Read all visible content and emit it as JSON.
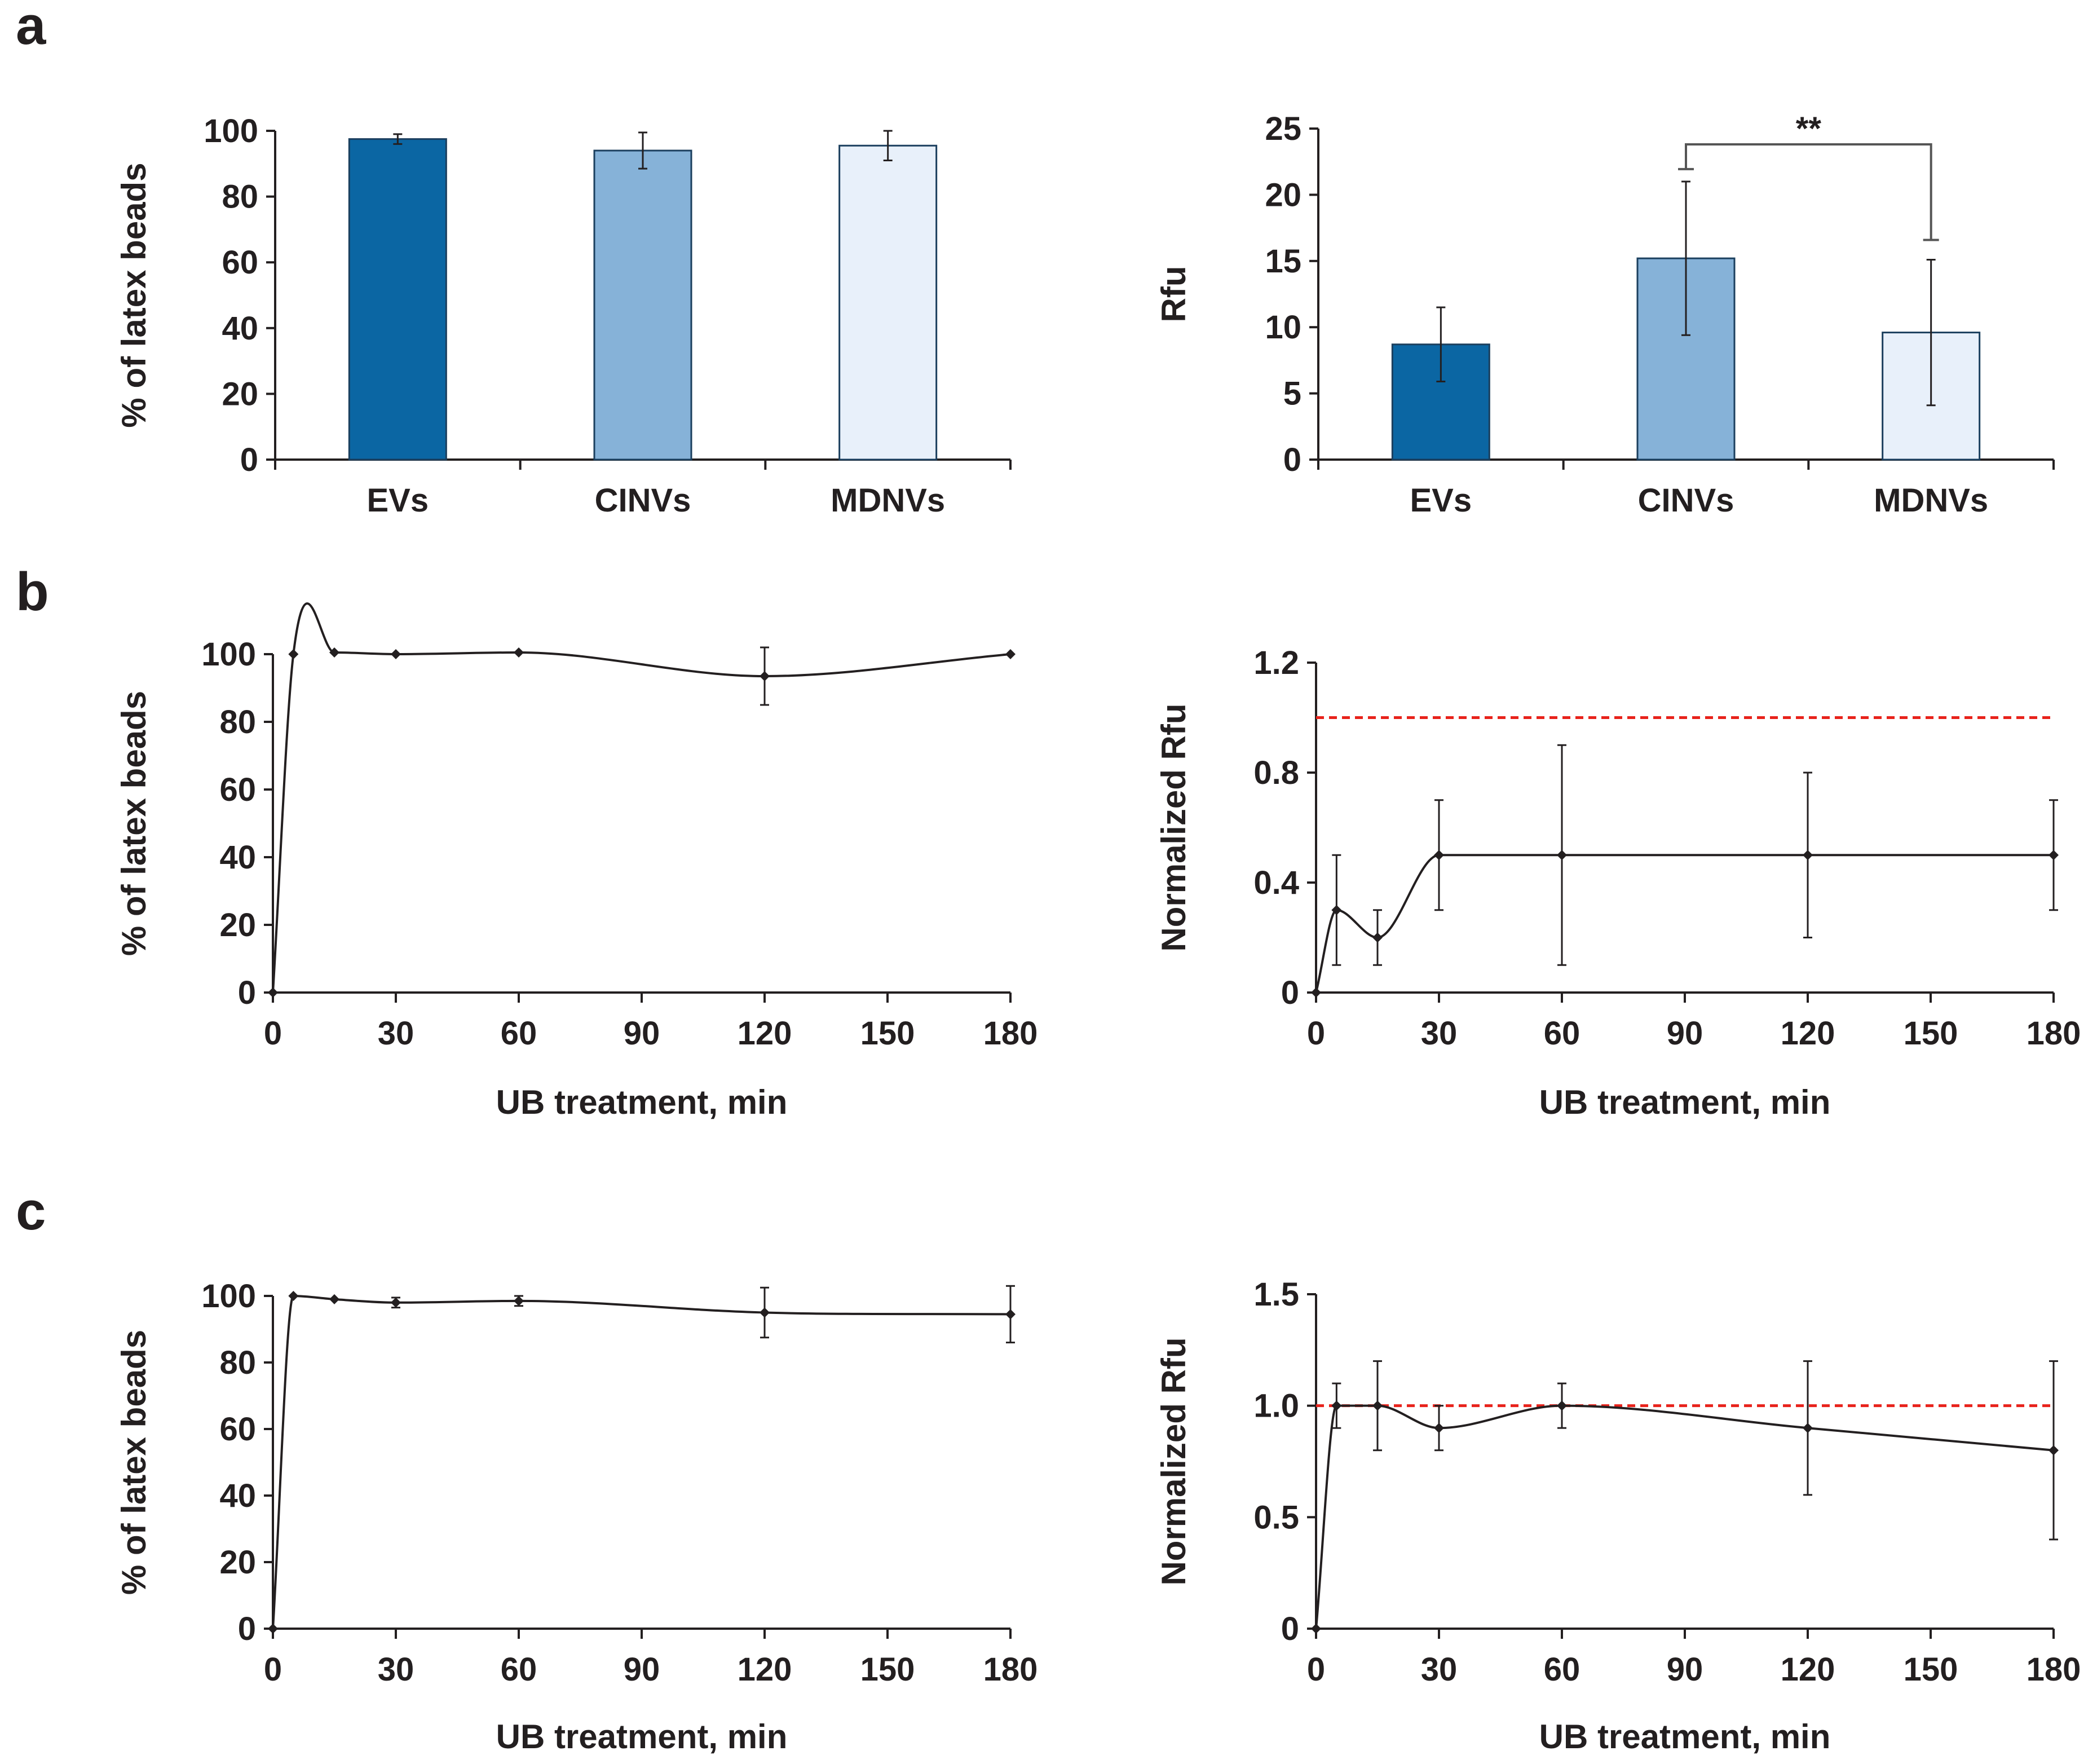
{
  "panels": {
    "a": "a",
    "b": "b",
    "c": "c"
  },
  "colors": {
    "EVs": "#0b66a3",
    "CINVs": "#86b2d8",
    "MDNVs": "#e8f0fa",
    "line": "#231f20",
    "reference": "#e8221b"
  },
  "chart_data": [
    {
      "id": "a-left",
      "type": "bar",
      "categories": [
        "EVs",
        "CINVs",
        "MDNVs"
      ],
      "values": [
        97.5,
        94,
        95.5
      ],
      "errors": [
        1.5,
        5.5,
        4.5
      ],
      "ylabel": "% of latex beads",
      "xlabel": "",
      "ylim": [
        0,
        100
      ],
      "yticks": [
        "0",
        "20",
        "40",
        "60",
        "80",
        "100"
      ]
    },
    {
      "id": "a-right",
      "type": "bar",
      "categories": [
        "EVs",
        "CINVs",
        "MDNVs"
      ],
      "values": [
        8.7,
        15.2,
        9.6
      ],
      "errors": [
        2.8,
        5.8,
        5.5
      ],
      "ylabel": "Rfu",
      "xlabel": "",
      "ylim": [
        0,
        25
      ],
      "yticks": [
        "0",
        "5",
        "10",
        "15",
        "20",
        "25"
      ],
      "annotation": {
        "text": "**",
        "between": [
          "CINVs",
          "MDNVs"
        ]
      }
    },
    {
      "id": "b-left",
      "type": "line",
      "x": [
        0,
        5,
        15,
        30,
        60,
        120,
        180
      ],
      "y": [
        0,
        100,
        100.5,
        100,
        100.5,
        93.5,
        100
      ],
      "errors": [
        0,
        0,
        0,
        0,
        0,
        8.5,
        0
      ],
      "ylabel": "% of latex beads",
      "xlabel": "UB treatment, min",
      "xlim": [
        0,
        180
      ],
      "ylim": [
        0,
        100
      ],
      "xticks": [
        "0",
        "30",
        "60",
        "90",
        "120",
        "150",
        "180"
      ],
      "yticks": [
        "0",
        "20",
        "40",
        "60",
        "80",
        "100"
      ]
    },
    {
      "id": "b-right",
      "type": "line",
      "x": [
        0,
        5,
        15,
        30,
        60,
        120,
        180
      ],
      "y": [
        0,
        0.3,
        0.2,
        0.5,
        0.5,
        0.5,
        0.5
      ],
      "errors": [
        0,
        0.2,
        0.1,
        0.2,
        0.4,
        0.3,
        0.2
      ],
      "reference_line": 1.0,
      "ylabel": "Normalized Rfu",
      "xlabel": "UB treatment, min",
      "xlim": [
        0,
        180
      ],
      "ylim": [
        0,
        1.2
      ],
      "xticks": [
        "0",
        "30",
        "60",
        "90",
        "120",
        "150",
        "180"
      ],
      "yticks": [
        "0",
        "0.4",
        "0.8",
        "1.2"
      ]
    },
    {
      "id": "c-left",
      "type": "line",
      "x": [
        0,
        5,
        15,
        30,
        60,
        120,
        180
      ],
      "y": [
        0,
        100,
        99,
        98,
        98.5,
        95,
        94.5
      ],
      "errors": [
        0,
        0,
        0,
        1.5,
        1.5,
        7.5,
        8.5
      ],
      "ylabel": "% of latex beads",
      "xlabel": "UB treatment, min",
      "xlim": [
        0,
        180
      ],
      "ylim": [
        0,
        100
      ],
      "xticks": [
        "0",
        "30",
        "60",
        "90",
        "120",
        "150",
        "180"
      ],
      "yticks": [
        "0",
        "20",
        "40",
        "60",
        "80",
        "100"
      ]
    },
    {
      "id": "c-right",
      "type": "line",
      "x": [
        0,
        5,
        15,
        30,
        60,
        120,
        180
      ],
      "y": [
        0,
        1.0,
        1.0,
        0.9,
        1.0,
        0.9,
        0.8
      ],
      "errors": [
        0,
        0.1,
        0.2,
        0.1,
        0.1,
        0.3,
        0.4
      ],
      "reference_line": 1.0,
      "ylabel": "Normalized Rfu",
      "xlabel": "UB treatment, min",
      "xlim": [
        0,
        180
      ],
      "ylim": [
        0,
        1.5
      ],
      "xticks": [
        "0",
        "30",
        "60",
        "90",
        "120",
        "150",
        "180"
      ],
      "yticks": [
        "0",
        "0.5",
        "1.0",
        "1.5"
      ]
    }
  ]
}
